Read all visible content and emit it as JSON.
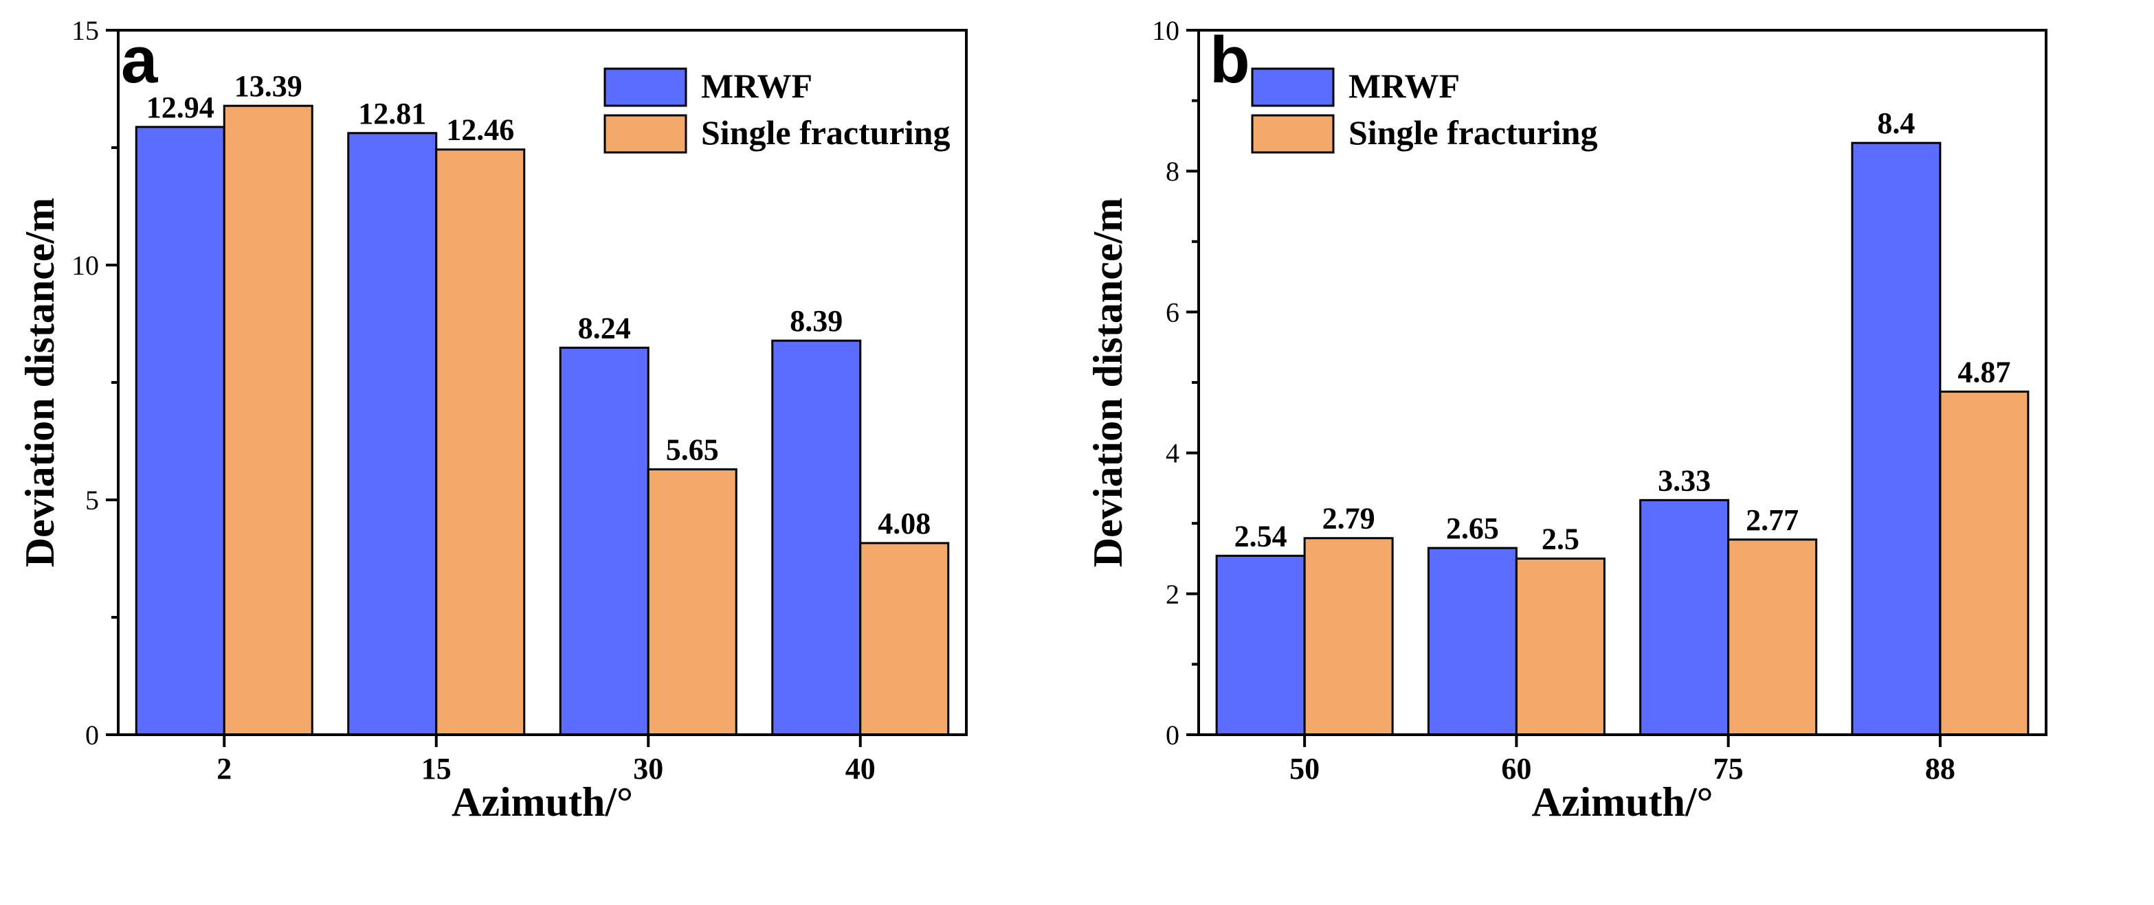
{
  "chart_data": [
    {
      "type": "bar",
      "panel": "a",
      "categories": [
        "2",
        "15",
        "30",
        "40"
      ],
      "series": [
        {
          "name": "MRWF",
          "values": [
            12.94,
            12.81,
            8.24,
            8.39
          ],
          "color": "#5a6dff"
        },
        {
          "name": "Single fracturing",
          "values": [
            13.39,
            12.46,
            5.65,
            4.08
          ],
          "color": "#f4a86a"
        }
      ],
      "value_labels": [
        [
          "12.94",
          "12.81",
          "8.24",
          "8.39"
        ],
        [
          "13.39",
          "12.46",
          "5.65",
          "4.08"
        ]
      ],
      "xlabel": "Azimuth/°",
      "ylabel": "Deviation distance/m",
      "ylim": [
        0,
        15
      ],
      "yticks": [
        0,
        5,
        10,
        15
      ],
      "legend": "top-right",
      "grid": false
    },
    {
      "type": "bar",
      "panel": "b",
      "categories": [
        "50",
        "60",
        "75",
        "88"
      ],
      "series": [
        {
          "name": "MRWF",
          "values": [
            2.54,
            2.65,
            3.33,
            8.4
          ],
          "color": "#5a6dff"
        },
        {
          "name": "Single fracturing",
          "values": [
            2.79,
            2.5,
            2.77,
            4.87
          ],
          "color": "#f4a86a"
        }
      ],
      "value_labels": [
        [
          "2.54",
          "2.65",
          "3.33",
          "8.4"
        ],
        [
          "2.79",
          "2.5",
          "2.77",
          "4.87"
        ]
      ],
      "xlabel": "Azimuth/°",
      "ylabel": "Deviation distance/m",
      "ylim": [
        0,
        10
      ],
      "yticks": [
        0,
        2,
        4,
        6,
        8,
        10
      ],
      "legend": "top-center",
      "grid": false
    }
  ]
}
